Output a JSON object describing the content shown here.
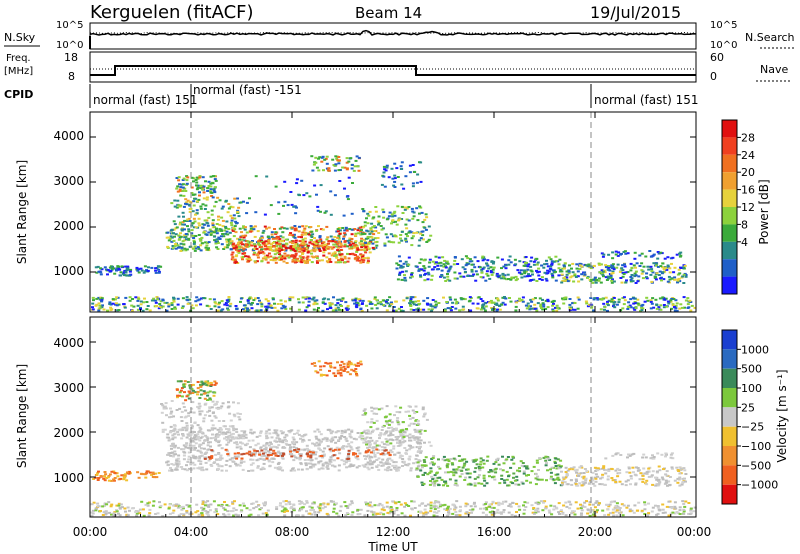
{
  "header": {
    "station": "Kerguelen (fitACF)",
    "beam": "Beam 14",
    "date": "19/Jul/2015"
  },
  "labels": {
    "nsky": "N.Sky",
    "nsearch": "N.Search",
    "freq": "Freq.",
    "mhz": "[MHz]",
    "nave": "Nave",
    "cpid": "CPID",
    "left_top": "10^5",
    "left_bot": "10^0",
    "right_top": "10^5",
    "right_bot": "10^0",
    "freq_top": "18",
    "freq_bot": "8",
    "nave_top": "60",
    "nave_bot": "0"
  },
  "cpid_segments": [
    "normal (fast) 151",
    "normal (fast) -151",
    "normal (fast) 151"
  ],
  "chart_data": [
    {
      "type": "heatmap",
      "name": "power-panel",
      "ylabel": "Slant Range [km]",
      "yticks": [
        "1000",
        "2000",
        "3000",
        "4000"
      ],
      "colorbar_label": "Power [dB]",
      "colorbar_ticks": [
        "4",
        "8",
        "12",
        "16",
        "20",
        "24",
        "28"
      ],
      "colorbar_colors": [
        "#1a1aff",
        "#1f5fc8",
        "#2a8a8a",
        "#3aaa3a",
        "#8cd23c",
        "#e6d23c",
        "#f0a030",
        "#f07020",
        "#f04020",
        "#e01010"
      ]
    },
    {
      "type": "heatmap",
      "name": "velocity-panel",
      "ylabel": "Slant Range [km]",
      "yticks": [
        "1000",
        "2000",
        "3000",
        "4000"
      ],
      "xlabel": "Time UT",
      "xticks": [
        "00:00",
        "04:00",
        "08:00",
        "12:00",
        "16:00",
        "20:00",
        "00:00"
      ],
      "colorbar_label": "Velocity [m s⁻¹]",
      "colorbar_ticks": [
        "1000",
        "500",
        "100",
        "25",
        "−25",
        "−100",
        "−500",
        "−1000"
      ],
      "colorbar_colors": [
        "#1a3fd0",
        "#2a6ac0",
        "#3a8a5a",
        "#7cc83c",
        "#c8c8c8",
        "#f0c030",
        "#f09030",
        "#f06020",
        "#e01010"
      ]
    }
  ]
}
